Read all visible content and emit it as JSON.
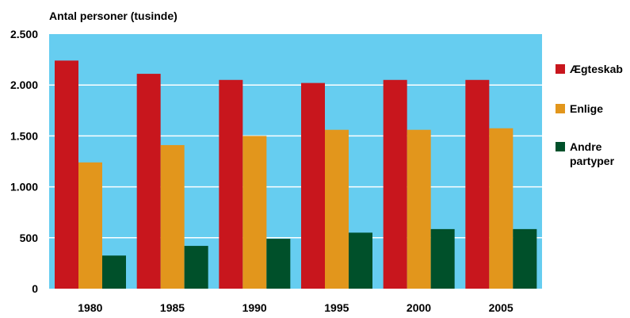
{
  "chart_data": {
    "type": "bar",
    "title": "",
    "ylabel": "Antal personer (tusinde)",
    "xlabel": "",
    "ylim": [
      0,
      2500
    ],
    "yticks": [
      0,
      500,
      1000,
      1500,
      2000,
      2500
    ],
    "ytick_labels": [
      "0",
      "500",
      "1.000",
      "1.500",
      "2.000",
      "2.500"
    ],
    "categories": [
      "1980",
      "1985",
      "1990",
      "1995",
      "2000",
      "2005"
    ],
    "series": [
      {
        "name": "Ægteskab",
        "color": "#c8161d",
        "values": [
          2240,
          2110,
          2050,
          2020,
          2050,
          2050
        ]
      },
      {
        "name": "Enlige",
        "color": "#e2961c",
        "values": [
          1240,
          1410,
          1500,
          1560,
          1560,
          1575
        ]
      },
      {
        "name": "Andre partyper",
        "color": "#00502a",
        "values": [
          325,
          420,
          490,
          550,
          585,
          585
        ]
      }
    ],
    "grid": true,
    "plot_background": "#66cdf0",
    "legend_position": "right"
  }
}
